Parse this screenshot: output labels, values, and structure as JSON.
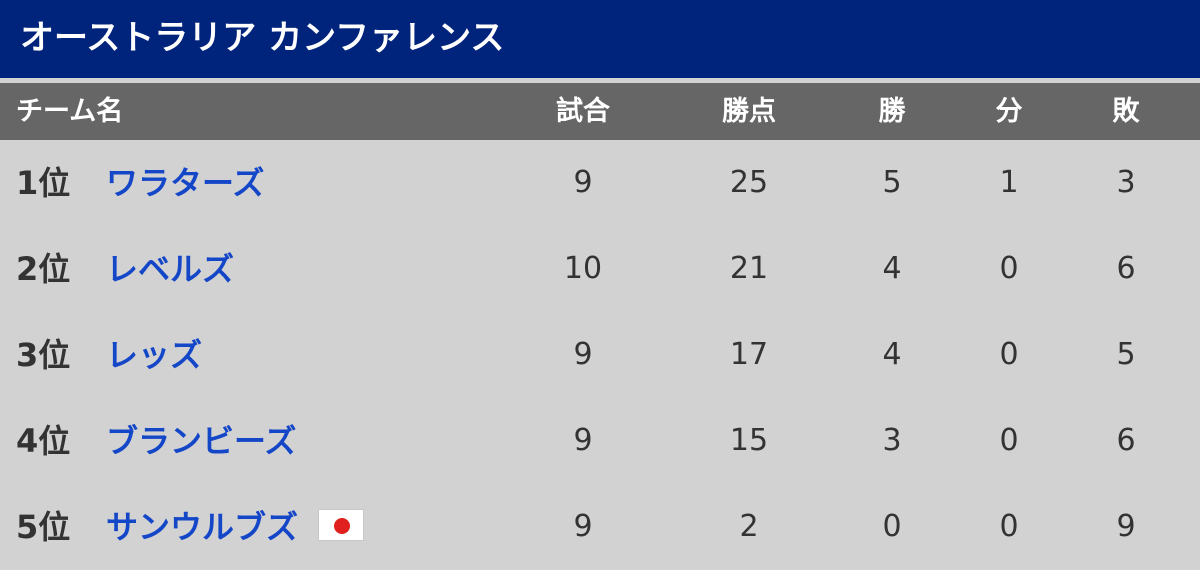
{
  "title": "オーストラリア カンファレンス",
  "headers": {
    "team": "チーム名",
    "games": "試合",
    "points": "勝点",
    "wins": "勝",
    "draws": "分",
    "losses": "敗"
  },
  "rows": [
    {
      "rank": "1位",
      "team": "ワラターズ",
      "games": "9",
      "points": "25",
      "wins": "5",
      "draws": "1",
      "losses": "3"
    },
    {
      "rank": "2位",
      "team": "レベルズ",
      "games": "10",
      "points": "21",
      "wins": "4",
      "draws": "0",
      "losses": "6"
    },
    {
      "rank": "3位",
      "team": "レッズ",
      "games": "9",
      "points": "17",
      "wins": "4",
      "draws": "0",
      "losses": "5"
    },
    {
      "rank": "4位",
      "team": "ブランビーズ",
      "games": "9",
      "points": "15",
      "wins": "3",
      "draws": "0",
      "losses": "6"
    },
    {
      "rank": "5位",
      "team": "サンウルブズ",
      "games": "9",
      "points": "2",
      "wins": "0",
      "draws": "0",
      "losses": "9",
      "flag_icon": "japan-flag-icon"
    }
  ],
  "colors": {
    "title_bg": "#00237c",
    "header_bg": "#666666",
    "body_bg": "#d2d2d2",
    "team_text": "#1446c8",
    "flag_red": "#e0201f"
  }
}
